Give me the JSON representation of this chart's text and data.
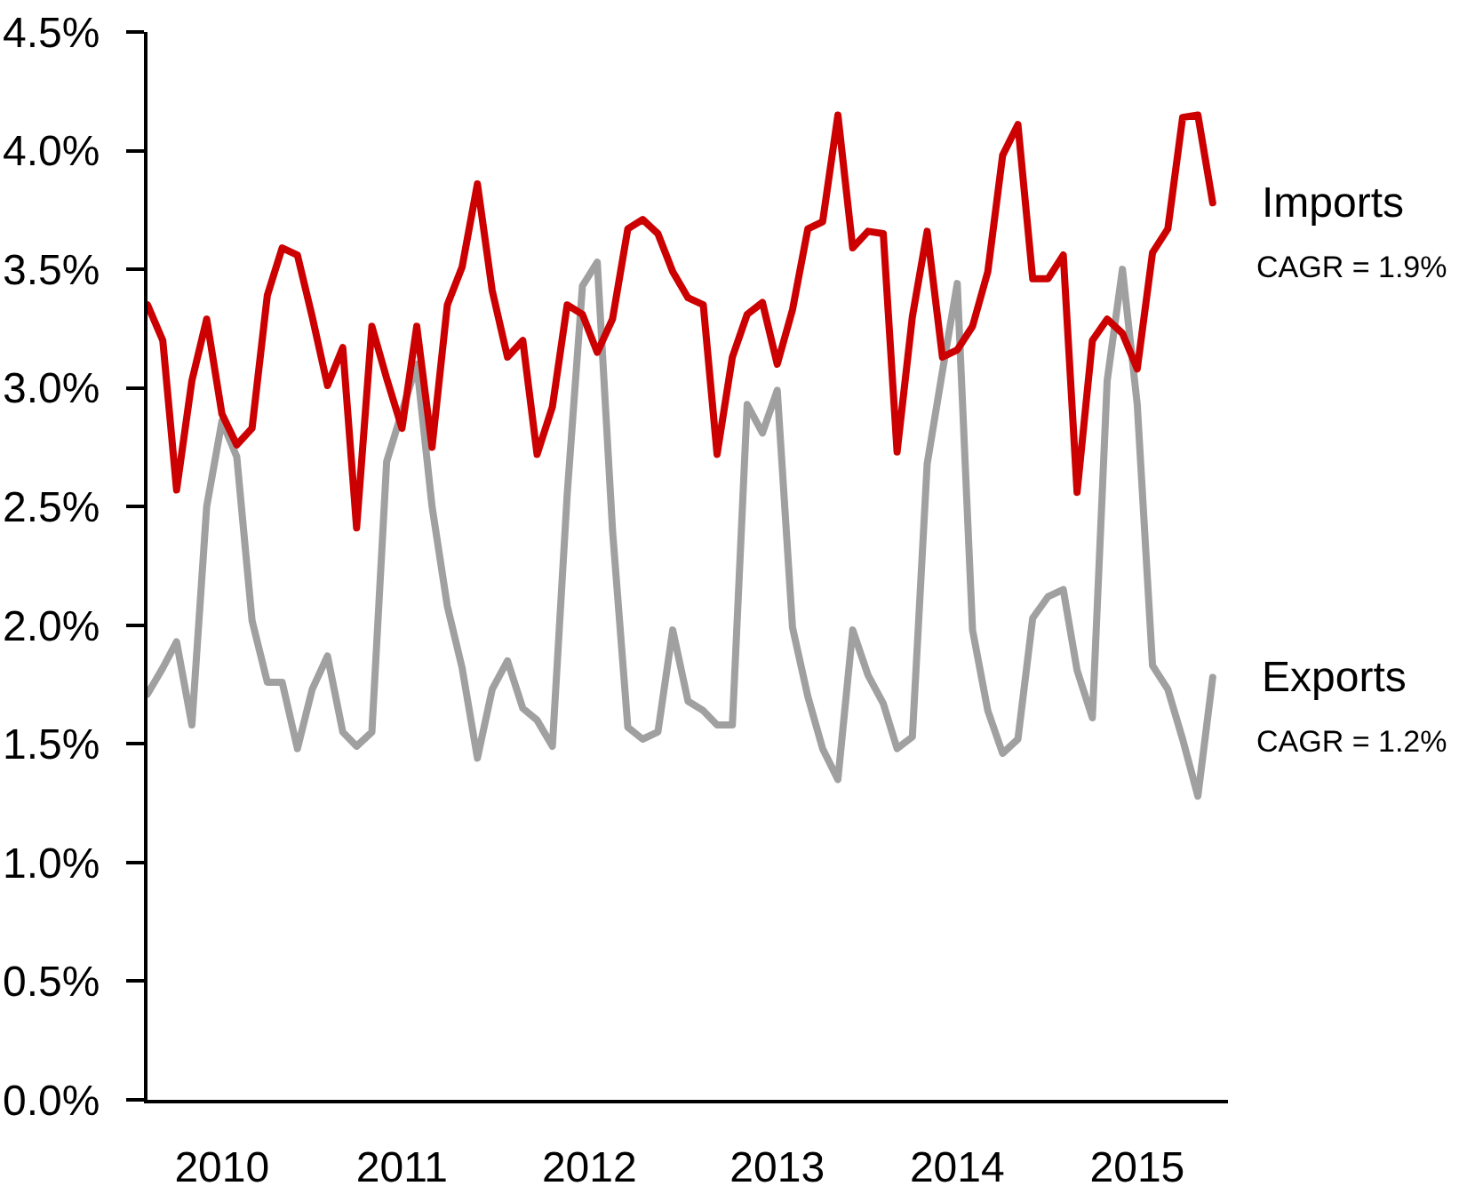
{
  "chart_data": {
    "type": "line",
    "x": [
      "2010-01",
      "2010-02",
      "2010-03",
      "2010-04",
      "2010-05",
      "2010-06",
      "2010-07",
      "2010-08",
      "2010-09",
      "2010-10",
      "2010-11",
      "2010-12",
      "2011-01",
      "2011-02",
      "2011-03",
      "2011-04",
      "2011-05",
      "2011-06",
      "2011-07",
      "2011-08",
      "2011-09",
      "2011-10",
      "2011-11",
      "2011-12",
      "2012-01",
      "2012-02",
      "2012-03",
      "2012-04",
      "2012-05",
      "2012-06",
      "2012-07",
      "2012-08",
      "2012-09",
      "2012-10",
      "2012-11",
      "2012-12",
      "2013-01",
      "2013-02",
      "2013-03",
      "2013-04",
      "2013-05",
      "2013-06",
      "2013-07",
      "2013-08",
      "2013-09",
      "2013-10",
      "2013-11",
      "2013-12",
      "2014-01",
      "2014-02",
      "2014-03",
      "2014-04",
      "2014-05",
      "2014-06",
      "2014-07",
      "2014-08",
      "2014-09",
      "2014-10",
      "2014-11",
      "2014-12",
      "2015-01",
      "2015-02",
      "2015-03",
      "2015-04",
      "2015-05",
      "2015-06",
      "2015-07",
      "2015-08",
      "2015-09",
      "2015-10",
      "2015-11",
      "2015-12"
    ],
    "series": [
      {
        "name": "Imports",
        "color": "#cc0000",
        "values": [
          3.35,
          3.2,
          2.57,
          3.03,
          3.29,
          2.89,
          2.76,
          2.83,
          3.39,
          3.59,
          3.56,
          3.3,
          3.01,
          3.17,
          2.41,
          3.26,
          3.04,
          2.83,
          3.26,
          2.75,
          3.35,
          3.51,
          3.86,
          3.41,
          3.13,
          3.2,
          2.72,
          2.92,
          3.35,
          3.31,
          3.15,
          3.29,
          3.67,
          3.71,
          3.65,
          3.49,
          3.38,
          3.35,
          2.72,
          3.13,
          3.31,
          3.36,
          3.1,
          3.33,
          3.67,
          3.7,
          4.15,
          3.59,
          3.66,
          3.65,
          2.73,
          3.3,
          3.66,
          3.13,
          3.16,
          3.26,
          3.49,
          3.98,
          4.11,
          3.46,
          3.46,
          3.56,
          2.56,
          3.2,
          3.29,
          3.23,
          3.08,
          3.57,
          3.67,
          4.14,
          4.15,
          3.78
        ]
      },
      {
        "name": "Exports",
        "color": "#a0a0a0",
        "values": [
          1.71,
          1.82,
          1.93,
          1.58,
          2.5,
          2.86,
          2.71,
          2.02,
          1.76,
          1.76,
          1.48,
          1.73,
          1.87,
          1.55,
          1.49,
          1.55,
          2.69,
          2.9,
          3.1,
          2.5,
          2.08,
          1.82,
          1.44,
          1.73,
          1.85,
          1.65,
          1.6,
          1.49,
          2.55,
          3.43,
          3.53,
          2.4,
          1.57,
          1.52,
          1.55,
          1.98,
          1.68,
          1.64,
          1.58,
          1.58,
          2.93,
          2.81,
          2.99,
          1.99,
          1.7,
          1.48,
          1.35,
          1.98,
          1.79,
          1.67,
          1.48,
          1.53,
          2.68,
          3.07,
          3.44,
          1.98,
          1.64,
          1.46,
          1.52,
          2.03,
          2.12,
          2.15,
          1.81,
          1.61,
          3.03,
          3.5,
          2.93,
          1.83,
          1.73,
          1.52,
          1.28,
          1.78
        ]
      }
    ],
    "annotations": [
      "CAGR = 1.9%",
      "CAGR = 1.2%"
    ],
    "xlim": [
      "2010-01",
      "2016-01"
    ],
    "xticks": [
      {
        "value": "2010-06",
        "label": "2010"
      },
      {
        "value": "2011-06",
        "label": "2011"
      },
      {
        "value": "2012-06-15",
        "label": "2012"
      },
      {
        "value": "2013-07",
        "label": "2013"
      },
      {
        "value": "2014-07",
        "label": "2014"
      },
      {
        "value": "2015-07",
        "label": "2015"
      }
    ],
    "ylim": [
      0,
      4.5
    ],
    "yticks": [
      {
        "value": 0,
        "label": "0.0%"
      },
      {
        "value": 0.5,
        "label": "0.5%"
      },
      {
        "value": 1,
        "label": "1.0%"
      },
      {
        "value": 1.5,
        "label": "1.5%"
      },
      {
        "value": 2,
        "label": "2.0%"
      },
      {
        "value": 2.5,
        "label": "2.5%"
      },
      {
        "value": 3,
        "label": "3.0%"
      },
      {
        "value": 3.5,
        "label": "3.5%"
      },
      {
        "value": 4,
        "label": "4.0%"
      },
      {
        "value": 4.5,
        "label": "4.5%"
      }
    ],
    "grid": false,
    "line_style": "solid"
  }
}
